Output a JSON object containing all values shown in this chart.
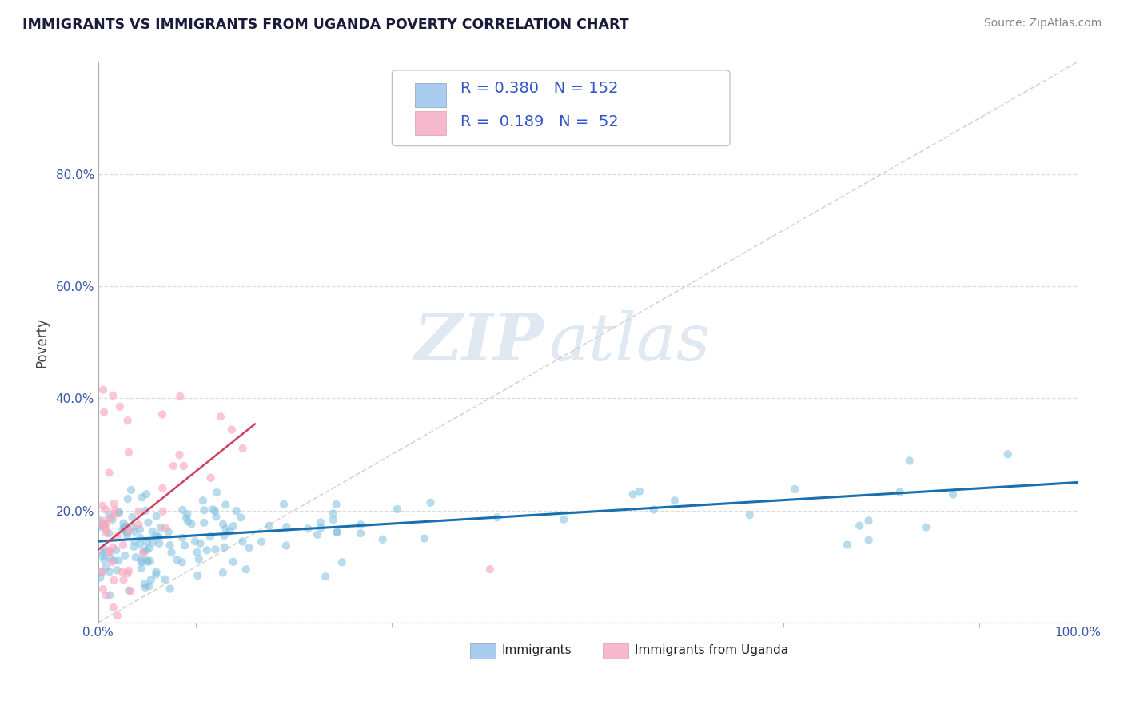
{
  "title": "IMMIGRANTS VS IMMIGRANTS FROM UGANDA POVERTY CORRELATION CHART",
  "source": "Source: ZipAtlas.com",
  "ylabel": "Poverty",
  "R_immigrants": 0.38,
  "N_immigrants": 152,
  "R_uganda": 0.189,
  "N_uganda": 52,
  "xlim": [
    0,
    1.0
  ],
  "ylim": [
    0,
    1.0
  ],
  "color_immigrants": "#7fbfdf",
  "color_uganda": "#f9a8bf",
  "color_line_immigrants": "#1a6faf",
  "color_line_uganda": "#d04060",
  "color_diagonal": "#cccccc",
  "watermark_zip": "ZIP",
  "watermark_atlas": "atlas",
  "legend_box_color_immigrants": "#aaccee",
  "legend_box_color_uganda": "#f5b8cc",
  "background_color": "#ffffff",
  "grid_color": "#dddddd"
}
